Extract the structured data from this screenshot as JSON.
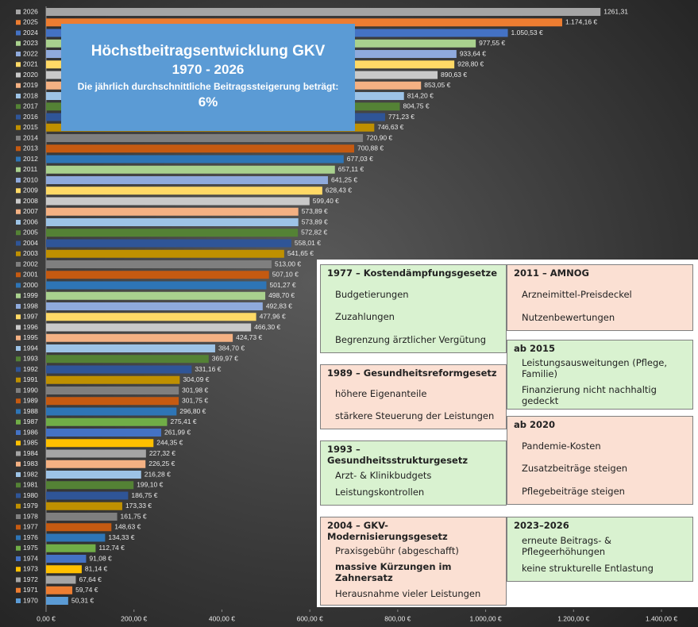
{
  "chart_data": {
    "type": "bar",
    "orientation": "horizontal",
    "title": "Höchstbeitragsentwicklung GKV",
    "subtitle": "1970 - 2026",
    "annotation": "Die jährlich durchschnittliche Beitragssteigerung beträgt:",
    "annotation_value": "6%",
    "categories": [
      "2026",
      "2025",
      "2024",
      "2023",
      "2022",
      "2021",
      "2020",
      "2019",
      "2018",
      "2017",
      "2016",
      "2015",
      "2014",
      "2013",
      "2012",
      "2011",
      "2010",
      "2009",
      "2008",
      "2007",
      "2006",
      "2005",
      "2004",
      "2003",
      "2002",
      "2001",
      "2000",
      "1999",
      "1998",
      "1997",
      "1996",
      "1995",
      "1994",
      "1993",
      "1992",
      "1991",
      "1990",
      "1989",
      "1988",
      "1987",
      "1986",
      "1985",
      "1984",
      "1983",
      "1982",
      "1981",
      "1980",
      "1979",
      "1978",
      "1977",
      "1976",
      "1975",
      "1974",
      "1973",
      "1972",
      "1971",
      "1970"
    ],
    "values": [
      1261.31,
      1174.16,
      1050.53,
      977.55,
      933.64,
      928.8,
      890.63,
      853.05,
      814.2,
      804.75,
      771.23,
      746.63,
      720.9,
      700.88,
      677.03,
      657.11,
      641.25,
      628.43,
      599.4,
      573.89,
      573.89,
      572.82,
      558.01,
      541.65,
      513.0,
      507.1,
      501.27,
      498.7,
      492.83,
      477.96,
      466.3,
      424.73,
      384.7,
      369.97,
      331.16,
      304.09,
      301.98,
      301.75,
      296.8,
      275.41,
      261.99,
      244.35,
      227.32,
      226.25,
      216.28,
      199.1,
      186.75,
      173.33,
      161.75,
      148.63,
      134.33,
      112.74,
      91.08,
      81.14,
      67.64,
      59.74,
      50.31
    ],
    "value_labels": [
      "1261,31",
      "1.174,16 €",
      "1.050,53 €",
      "977,55 €",
      "933,64 €",
      "928,80 €",
      "890,63 €",
      "853,05 €",
      "814,20 €",
      "804,75 €",
      "771,23 €",
      "746,63 €",
      "720,90 €",
      "700,88 €",
      "677,03 €",
      "657,11 €",
      "641,25 €",
      "628,43 €",
      "599,40 €",
      "573,89 €",
      "573,89 €",
      "572,82 €",
      "558,01 €",
      "541,65 €",
      "513,00 €",
      "507,10 €",
      "501,27 €",
      "498,70 €",
      "492,83 €",
      "477,96 €",
      "466,30 €",
      "424,73 €",
      "384,70 €",
      "369,97 €",
      "331,16 €",
      "304,09 €",
      "301,98 €",
      "301,75 €",
      "296,80 €",
      "275,41 €",
      "261,99 €",
      "244,35 €",
      "227,32 €",
      "226,25 €",
      "216,28 €",
      "199,10 €",
      "186,75 €",
      "173,33 €",
      "161,75 €",
      "148,63 €",
      "134,33 €",
      "112,74 €",
      "91,08 €",
      "81,14 €",
      "67,64 €",
      "59,74 €",
      "50,31 €"
    ],
    "colors": [
      "#a5a5a5",
      "#ed7d31",
      "#4472c4",
      "#a9d18e",
      "#8faadc",
      "#ffd966",
      "#c9c9c9",
      "#f4b183",
      "#9dc3e6",
      "#548235",
      "#2f5597",
      "#bf9000",
      "#7f7f7f",
      "#c55a11",
      "#2e75b6",
      "#a9d18e",
      "#8faadc",
      "#ffd966",
      "#c9c9c9",
      "#f4b183",
      "#9dc3e6",
      "#548235",
      "#2f5597",
      "#bf9000",
      "#7f7f7f",
      "#c55a11",
      "#2e75b6",
      "#a9d18e",
      "#8faadc",
      "#ffd966",
      "#c9c9c9",
      "#f4b183",
      "#9dc3e6",
      "#548235",
      "#2f5597",
      "#bf9000",
      "#7f7f7f",
      "#c55a11",
      "#2e75b6",
      "#70ad47",
      "#4472c4",
      "#ffc000",
      "#a5a5a5",
      "#f4b183",
      "#9dc3e6",
      "#548235",
      "#2f5597",
      "#bf9000",
      "#7f7f7f",
      "#c55a11",
      "#2e75b6",
      "#70ad47",
      "#4472c4",
      "#ffc000",
      "#a5a5a5",
      "#ed7d31",
      "#5b9bd5"
    ],
    "xlim": [
      0,
      1400
    ],
    "xticks": [
      {
        "value": 0,
        "label": "0,00 €"
      },
      {
        "value": 200,
        "label": "200,00 €"
      },
      {
        "value": 400,
        "label": "400,00 €"
      },
      {
        "value": 600,
        "label": "600,00 €"
      },
      {
        "value": 800,
        "label": "800,00 €"
      },
      {
        "value": 1000,
        "label": "1.000,00 €"
      },
      {
        "value": 1200,
        "label": "1.200,00 €"
      },
      {
        "value": 1400,
        "label": "1.400,00 €"
      }
    ]
  },
  "info_panel": {
    "left": [
      {
        "title": "1977 – Kostendämpfungsgesetze",
        "color": "#d9f2d0",
        "items": [
          "Budgetierungen",
          "Zuzahlungen",
          "Begrenzung ärztlicher Vergütung"
        ]
      },
      {
        "title": "1989 – Gesundheitsreformgesetz",
        "color": "#fbe0d3",
        "items": [
          "höhere Eigenanteile",
          "stärkere Steuerung der Leistungen"
        ]
      },
      {
        "title": "1993 – Gesundheitsstrukturgesetz",
        "color": "#d9f2d0",
        "items": [
          "Arzt- & Klinikbudgets",
          "Leistungskontrollen"
        ]
      },
      {
        "title": "2004 – GKV-Modernisierungsgesetz",
        "color": "#fbe0d3",
        "items": [
          "Praxisgebühr (abgeschafft)",
          "massive Kürzungen im Zahnersatz",
          "Herausnahme vieler Leistungen"
        ],
        "bold_items": [
          1
        ]
      }
    ],
    "right": [
      {
        "title": "2011 – AMNOG",
        "color": "#fbe0d3",
        "items": [
          "Arzneimittel-Preisdeckel",
          "Nutzenbewertungen"
        ]
      },
      {
        "title": "ab 2015",
        "color": "#d9f2d0",
        "items": [
          "Leistungsausweitungen (Pflege, Familie)",
          "Finanzierung nicht nachhaltig gedeckt"
        ]
      },
      {
        "title": "ab 2020",
        "color": "#fbe0d3",
        "items": [
          "Pandemie-Kosten",
          "Zusatzbeiträge steigen",
          "Pflegebeiträge steigen"
        ]
      },
      {
        "title": "2023–2026",
        "color": "#d9f2d0",
        "items": [
          "erneute Beitrags- & Pflegeerhöhungen",
          "keine strukturelle Entlastung"
        ]
      }
    ]
  }
}
